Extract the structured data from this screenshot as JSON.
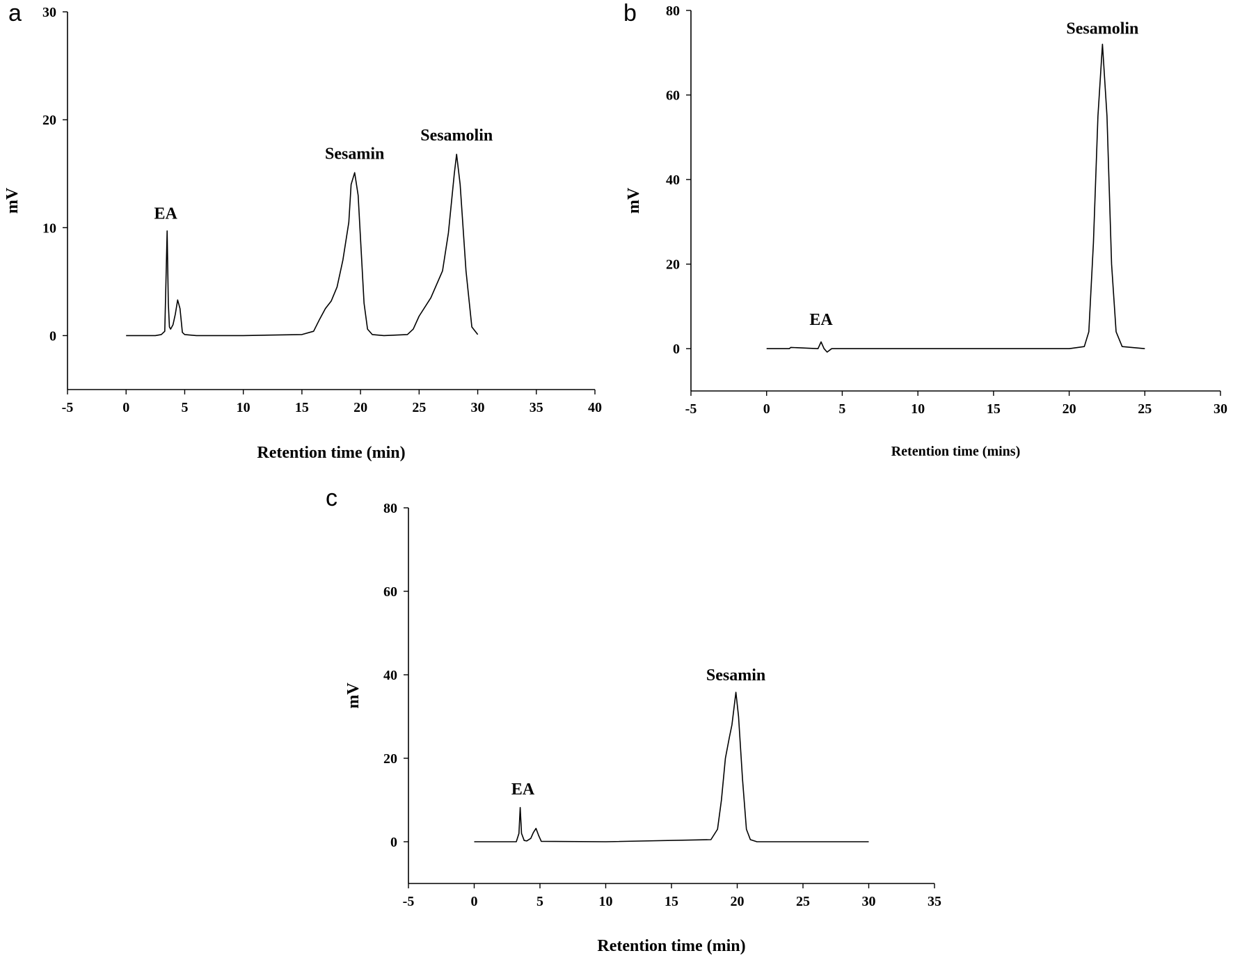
{
  "chart_data": [
    {
      "type": "line",
      "panel_label": "a",
      "xlabel": "Retention time (min)",
      "ylabel": "mV",
      "xlim": [
        -5,
        40
      ],
      "ylim": [
        -5,
        30
      ],
      "xticks": [
        -5,
        0,
        5,
        10,
        15,
        20,
        25,
        30,
        35,
        40
      ],
      "yticks": [
        0,
        10,
        20,
        30
      ],
      "annotations": [
        {
          "text": "EA",
          "x": 3.5,
          "y": 9.8
        },
        {
          "text": "Sesamin",
          "x": 19.5,
          "y": 15.2
        },
        {
          "text": "Sesamolin",
          "x": 28.2,
          "y": 16.9
        }
      ],
      "series": [
        {
          "x": [
            0,
            2.5,
            3.0,
            3.3,
            3.4,
            3.5,
            3.6,
            3.7,
            3.8,
            4.0,
            4.2,
            4.4,
            4.6,
            4.8,
            5.0,
            6,
            10,
            15,
            16,
            16.5,
            17,
            17.5,
            18,
            18.5,
            19,
            19.2,
            19.5,
            19.8,
            20,
            20.3,
            20.6,
            21,
            22,
            24,
            24.5,
            25,
            26,
            27,
            27.5,
            28,
            28.2,
            28.5,
            29,
            29.5,
            30
          ],
          "y": [
            0,
            0,
            0.1,
            0.4,
            5,
            9.7,
            3,
            0.8,
            0.6,
            1,
            2,
            3.3,
            2.5,
            0.3,
            0.1,
            0,
            0,
            0.1,
            0.4,
            1.5,
            2.5,
            3.2,
            4.5,
            7,
            10.5,
            14,
            15.1,
            13,
            9,
            3,
            0.6,
            0.1,
            0,
            0.1,
            0.6,
            1.8,
            3.5,
            6,
            9.5,
            15,
            16.8,
            14,
            6,
            0.8,
            0.1
          ]
        }
      ]
    },
    {
      "type": "line",
      "panel_label": "b",
      "xlabel": "Retention time (mins)",
      "ylabel": "mV",
      "xlim": [
        -5,
        30
      ],
      "ylim": [
        -10,
        80
      ],
      "xticks": [
        -5,
        0,
        5,
        10,
        15,
        20,
        25,
        30
      ],
      "yticks": [
        0,
        20,
        40,
        60,
        80
      ],
      "annotations": [
        {
          "text": "EA",
          "x": 3.6,
          "y": 2.0
        },
        {
          "text": "Sesamolin",
          "x": 22.2,
          "y": 72.5
        }
      ],
      "series": [
        {
          "x": [
            0,
            1.5,
            1.6,
            3.4,
            3.6,
            3.8,
            4.0,
            4.3,
            10,
            20,
            21,
            21.3,
            21.6,
            21.9,
            22.2,
            22.5,
            22.8,
            23.1,
            23.5,
            25
          ],
          "y": [
            0,
            0,
            0.3,
            0,
            1.6,
            0,
            -0.8,
            0,
            0,
            0,
            0.5,
            4,
            25,
            55,
            72,
            55,
            20,
            4,
            0.5,
            0
          ]
        }
      ]
    },
    {
      "type": "line",
      "panel_label": "c",
      "xlabel": "Retention time (min)",
      "ylabel": "mV",
      "xlim": [
        -5,
        35
      ],
      "ylim": [
        -10,
        80
      ],
      "xticks": [
        -5,
        0,
        5,
        10,
        15,
        20,
        25,
        30,
        35
      ],
      "yticks": [
        0,
        20,
        40,
        60,
        80
      ],
      "annotations": [
        {
          "text": "EA",
          "x": 3.6,
          "y": 8.3
        },
        {
          "text": "Sesamin",
          "x": 19.9,
          "y": 36
        }
      ],
      "series": [
        {
          "x": [
            0,
            3.2,
            3.4,
            3.5,
            3.6,
            3.8,
            4.0,
            4.3,
            4.5,
            4.7,
            4.9,
            5.1,
            10,
            18,
            18.5,
            18.8,
            19.1,
            19.4,
            19.6,
            19.9,
            20.1,
            20.4,
            20.7,
            21,
            21.5,
            30
          ],
          "y": [
            0,
            0,
            2,
            8.2,
            2,
            0.3,
            0.2,
            0.8,
            2.2,
            3.2,
            1.5,
            0.1,
            0,
            0.5,
            3,
            10,
            20,
            25,
            28,
            35.8,
            30,
            15,
            3,
            0.5,
            0,
            0
          ]
        }
      ]
    }
  ]
}
